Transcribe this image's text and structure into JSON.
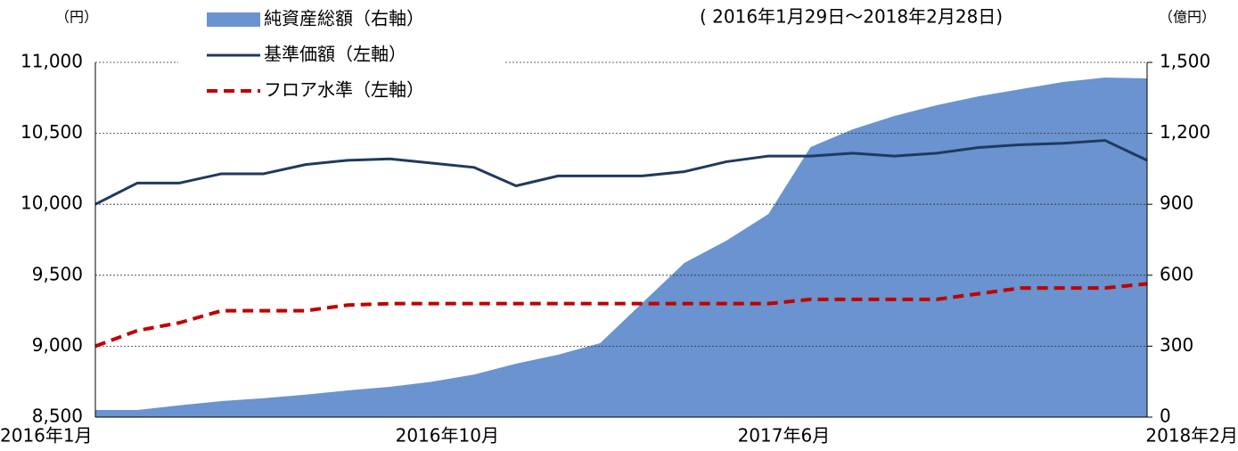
{
  "chart_data": {
    "type": "combo",
    "left_unit": "（円）",
    "right_unit": "（億円）",
    "subtitle": "( 2016年1月29日～2018年2月28日)",
    "categories": [
      "2016年1月",
      null,
      null,
      null,
      null,
      null,
      null,
      null,
      null,
      "2016年10月",
      null,
      null,
      null,
      null,
      null,
      null,
      null,
      "2017年6月",
      null,
      null,
      null,
      null,
      null,
      null,
      null,
      "2018年2月"
    ],
    "series": [
      {
        "name": "純資産総額（右軸）",
        "kind": "area",
        "axis": "y2",
        "color": "#6a93cf",
        "values": [
          30,
          30,
          50,
          68,
          80,
          95,
          113,
          128,
          150,
          180,
          226,
          264,
          313,
          483,
          652,
          746,
          859,
          1142,
          1217,
          1274,
          1319,
          1357,
          1387,
          1417,
          1436,
          1432
        ]
      },
      {
        "name": "基準価額（左軸）",
        "kind": "line",
        "color": "#1f3a5f",
        "dash": false,
        "values": [
          10000,
          10150,
          10150,
          10215,
          10215,
          10280,
          10310,
          10320,
          10290,
          10260,
          10130,
          10200,
          10200,
          10200,
          10230,
          10300,
          10340,
          10340,
          10360,
          10340,
          10360,
          10400,
          10420,
          10430,
          10450,
          10310
        ]
      },
      {
        "name": "フロア水準（左軸）",
        "kind": "line",
        "color": "#c00000",
        "dash": true,
        "values": [
          9000,
          9110,
          9165,
          9250,
          9250,
          9250,
          9290,
          9300,
          9300,
          9300,
          9300,
          9300,
          9300,
          9300,
          9300,
          9300,
          9300,
          9330,
          9330,
          9330,
          9330,
          9370,
          9410,
          9410,
          9410,
          9440
        ]
      }
    ],
    "ylim": [
      8500,
      11000
    ],
    "yticks": [
      {
        "value": 8500,
        "label": "8,500"
      },
      {
        "value": 9000,
        "label": "9,000"
      },
      {
        "value": 9500,
        "label": "9,500"
      },
      {
        "value": 10000,
        "label": "10,000"
      },
      {
        "value": 10500,
        "label": "10,500"
      },
      {
        "value": 11000,
        "label": "11,000"
      }
    ],
    "y2lim": [
      0,
      1500
    ],
    "y2ticks": [
      0,
      300,
      600,
      900,
      {
        "value": 1200,
        "label": "1,200"
      },
      {
        "value": 1500,
        "label": "1,500"
      }
    ],
    "grid": true
  }
}
